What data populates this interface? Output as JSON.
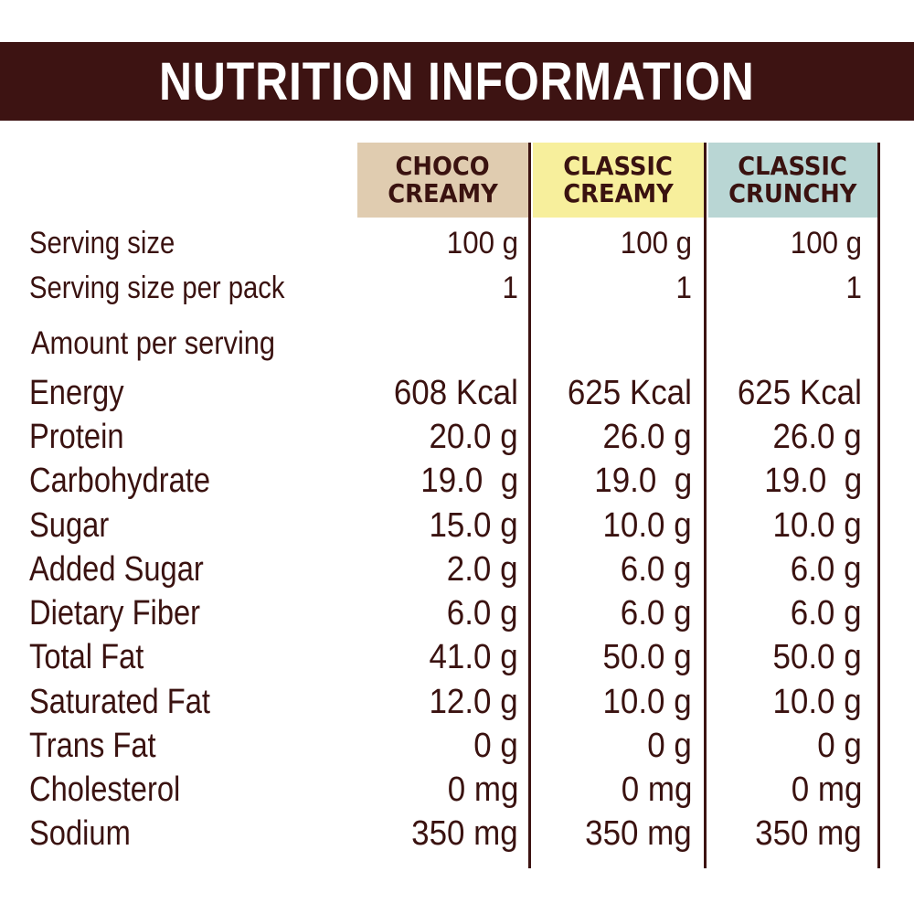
{
  "title": "NUTRITION INFORMATION",
  "products": [
    {
      "line1": "CHOCO",
      "line2": "CREAMY",
      "color": "#e0ccb0"
    },
    {
      "line1": "CLASSIC",
      "line2": "CREAMY",
      "color": "#f7ef9c"
    },
    {
      "line1": "CLASSIC",
      "line2": "CRUNCHY",
      "color": "#b9d6d4"
    }
  ],
  "serving_rows": [
    {
      "label": "Serving size",
      "values": [
        "100 g",
        "100 g",
        "100 g"
      ]
    },
    {
      "label": "Serving size per pack",
      "values": [
        "1",
        "1",
        "1"
      ]
    }
  ],
  "amount_label": "Amount per serving",
  "nutrients": [
    {
      "label": "Energy",
      "values": [
        "608 Kcal",
        "625 Kcal",
        "625 Kcal"
      ]
    },
    {
      "label": "Protein",
      "values": [
        "20.0 g",
        "26.0 g",
        "26.0 g"
      ]
    },
    {
      "label": "Carbohydrate",
      "values": [
        "19.0  g",
        "19.0  g",
        "19.0  g"
      ]
    },
    {
      "label": "Sugar",
      "values": [
        "15.0 g",
        "10.0 g",
        "10.0 g"
      ]
    },
    {
      "label": "Added Sugar",
      "values": [
        "2.0 g",
        "6.0 g",
        "6.0 g"
      ]
    },
    {
      "label": "Dietary Fiber",
      "values": [
        "6.0 g",
        "6.0 g",
        "6.0 g"
      ]
    },
    {
      "label": "Total Fat",
      "values": [
        "41.0 g",
        "50.0 g",
        "50.0 g"
      ]
    },
    {
      "label": "Saturated Fat",
      "values": [
        "12.0 g",
        "10.0 g",
        "10.0 g"
      ]
    },
    {
      "label": "Trans Fat",
      "values": [
        "0 g",
        "0 g",
        "0 g"
      ]
    },
    {
      "label": "Cholesterol",
      "values": [
        "0 mg",
        "0 mg",
        "0 mg"
      ]
    },
    {
      "label": "Sodium",
      "values": [
        "350 mg",
        "350 mg",
        "350 mg"
      ]
    }
  ],
  "colors": {
    "brown": "#3d1312",
    "text": "#3a1210"
  }
}
